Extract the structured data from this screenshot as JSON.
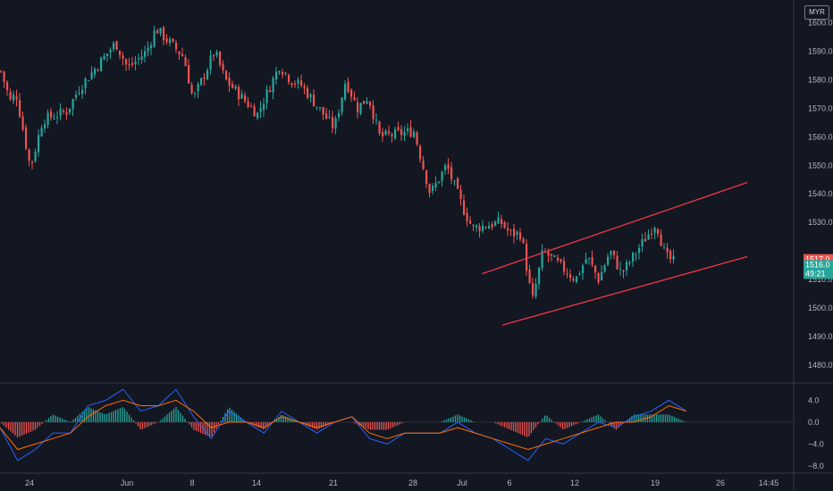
{
  "currency_label": "MYR",
  "price_axis": {
    "labels": [
      "1600.0",
      "1590.0",
      "1580.0",
      "1570.0",
      "1560.0",
      "1550.0",
      "1540.0",
      "1530.0",
      "1510.0",
      "1500.0",
      "1490.0",
      "1480.0"
    ],
    "values": [
      1600,
      1590,
      1580,
      1570,
      1560,
      1550,
      1540,
      1530,
      1510,
      1500,
      1490,
      1480
    ]
  },
  "price_badges": {
    "last_price": "1517.0",
    "current_price": "1516.0",
    "countdown": "49:21"
  },
  "macd_axis": {
    "labels": [
      "4.0",
      "0.0",
      "−4.0",
      "−8.0"
    ],
    "values": [
      4,
      0,
      -4,
      -8
    ]
  },
  "time_axis": {
    "labels": [
      "24",
      "Jun",
      "8",
      "14",
      "21",
      "28",
      "Jul",
      "6",
      "12",
      "19",
      "26",
      "14:45"
    ],
    "positions": [
      "May 24",
      "Jun 1",
      "Jun 8",
      "Jun 14",
      "Jun 21",
      "Jun 28",
      "Jul 1",
      "Jul 6",
      "Jul 12",
      "Jul 19",
      "Jul 26",
      "14:45"
    ]
  },
  "colors": {
    "background": "#131722",
    "up": "#26a69a",
    "down": "#ef5350",
    "trendline": "#f23645",
    "macd_line": "#2962ff",
    "signal_line": "#ff6d00",
    "axis_text": "#b2b5be"
  },
  "chart_data": [
    {
      "type": "candlestick",
      "title": "",
      "ylim": [
        1474,
        1608
      ],
      "close_path": [
        {
          "x": "May 18",
          "y": 1583
        },
        {
          "x": "May 20",
          "y": 1572
        },
        {
          "x": "May 21",
          "y": 1576
        },
        {
          "x": "May 24",
          "y": 1549
        },
        {
          "x": "May 25",
          "y": 1566
        },
        {
          "x": "May 27",
          "y": 1569
        },
        {
          "x": "May 28",
          "y": 1577
        },
        {
          "x": "May 31",
          "y": 1593
        },
        {
          "x": "Jun 1",
          "y": 1584
        },
        {
          "x": "Jun 3",
          "y": 1590
        },
        {
          "x": "Jun 4",
          "y": 1598
        },
        {
          "x": "Jun 7",
          "y": 1588
        },
        {
          "x": "Jun 8",
          "y": 1573
        },
        {
          "x": "Jun 10",
          "y": 1590
        },
        {
          "x": "Jun 11",
          "y": 1580
        },
        {
          "x": "Jun 14",
          "y": 1568
        },
        {
          "x": "Jun 16",
          "y": 1585
        },
        {
          "x": "Jun 17",
          "y": 1580
        },
        {
          "x": "Jun 18",
          "y": 1578
        },
        {
          "x": "Jun 21",
          "y": 1563
        },
        {
          "x": "Jun 22",
          "y": 1580
        },
        {
          "x": "Jun 23",
          "y": 1570
        },
        {
          "x": "Jun 24",
          "y": 1574
        },
        {
          "x": "Jun 25",
          "y": 1560
        },
        {
          "x": "Jun 28",
          "y": 1562
        },
        {
          "x": "Jun 29",
          "y": 1540
        },
        {
          "x": "Jun 30",
          "y": 1550
        },
        {
          "x": "Jul 1",
          "y": 1535
        },
        {
          "x": "Jul 2",
          "y": 1528
        },
        {
          "x": "Jul 5",
          "y": 1530
        },
        {
          "x": "Jul 6",
          "y": 1526
        },
        {
          "x": "Jul 7",
          "y": 1526
        },
        {
          "x": "Jul 8",
          "y": 1502
        },
        {
          "x": "Jul 9",
          "y": 1520
        },
        {
          "x": "Jul 12",
          "y": 1510
        },
        {
          "x": "Jul 13",
          "y": 1518
        },
        {
          "x": "Jul 14",
          "y": 1510
        },
        {
          "x": "Jul 15",
          "y": 1520
        },
        {
          "x": "Jul 16",
          "y": 1512
        },
        {
          "x": "Jul 19",
          "y": 1530
        },
        {
          "x": "Jul 20",
          "y": 1518
        },
        {
          "x": "Jul 21",
          "y": 1516
        }
      ],
      "trendlines": [
        {
          "from": {
            "x": "Jul 5",
            "y": 1512
          },
          "to": {
            "x": "Jul 26",
            "y": 1544
          }
        },
        {
          "from": {
            "x": "Jul 7",
            "y": 1494
          },
          "to": {
            "x": "Jul 26",
            "y": 1518
          }
        }
      ]
    },
    {
      "type": "line",
      "title": "",
      "ylim": [
        -9,
        7
      ],
      "series": [
        {
          "values": [
            -1,
            -7,
            -5,
            -2,
            -2,
            3,
            4,
            6,
            2,
            3,
            6,
            1,
            -3,
            2,
            0,
            -2,
            2,
            0,
            -2,
            0,
            1,
            -3,
            -4,
            -2,
            -2,
            -2,
            0,
            -2,
            -3,
            -5,
            -7,
            -3,
            -4,
            -2,
            0,
            -1,
            1,
            2,
            4,
            2
          ]
        },
        {
          "values": [
            -1,
            -5,
            -4,
            -3,
            -2,
            1,
            3,
            4,
            3,
            3,
            4,
            2,
            -1,
            0,
            0,
            -1,
            1,
            0,
            -1,
            0,
            1,
            -2,
            -3,
            -2,
            -2,
            -2,
            -1,
            -2,
            -3,
            -4,
            -5,
            -4,
            -3,
            -2,
            -1,
            0,
            0,
            1,
            3,
            2
          ]
        }
      ]
    }
  ]
}
